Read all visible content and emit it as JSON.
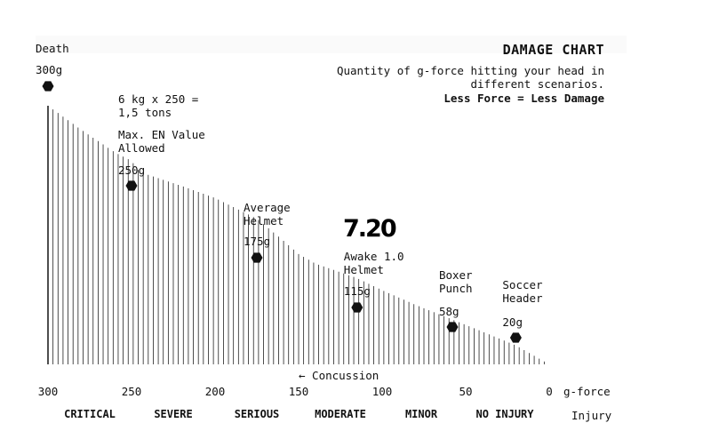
{
  "chart_data": {
    "type": "bar",
    "title": "DAMAGE CHART",
    "subtitle": "Quantity of g-force hitting your head in different scenarios.",
    "tagline": "Less Force = Less Damage",
    "xlabel": "g-force",
    "xlim": [
      300,
      0
    ],
    "x_ticks": [
      "300",
      "250",
      "200",
      "150",
      "100",
      "50",
      "0"
    ],
    "curve": [
      {
        "x": 300,
        "y": 300
      },
      {
        "x": 280,
        "y": 272
      },
      {
        "x": 260,
        "y": 246
      },
      {
        "x": 250,
        "y": 236
      },
      {
        "x": 245,
        "y": 223
      },
      {
        "x": 220,
        "y": 207
      },
      {
        "x": 200,
        "y": 193
      },
      {
        "x": 175,
        "y": 169
      },
      {
        "x": 160,
        "y": 145
      },
      {
        "x": 150,
        "y": 128
      },
      {
        "x": 140,
        "y": 117
      },
      {
        "x": 115,
        "y": 100
      },
      {
        "x": 100,
        "y": 86
      },
      {
        "x": 80,
        "y": 69
      },
      {
        "x": 58,
        "y": 52
      },
      {
        "x": 40,
        "y": 38
      },
      {
        "x": 20,
        "y": 22
      },
      {
        "x": 0,
        "y": 0
      }
    ],
    "annotations": [
      {
        "x": 300,
        "name": "Death",
        "value": "300g"
      },
      {
        "x": 250,
        "name": "Max. EN Value\nAllowed",
        "value": "250g",
        "note": "6 kg x 250 =\n1,5 tons"
      },
      {
        "x": 175,
        "name": "Average\nHelmet",
        "value": "175g"
      },
      {
        "x": 115,
        "name": "Awake 1.0\nHelmet",
        "value": "115g"
      },
      {
        "x": 58,
        "name": "Boxer\nPunch",
        "value": "58g"
      },
      {
        "x": 20,
        "name": "Soccer\nHeader",
        "value": "20g"
      }
    ],
    "concussion_label": "← Concussion",
    "injury_title": "Injury",
    "categories": [
      "CRITICAL",
      "SEVERE",
      "SERIOUS",
      "MODERATE",
      "MINOR",
      "NO INJURY"
    ],
    "logo": "7.20",
    "colors": {
      "ink": "#111111",
      "bar": "#222222",
      "background": "#ffffff"
    }
  }
}
